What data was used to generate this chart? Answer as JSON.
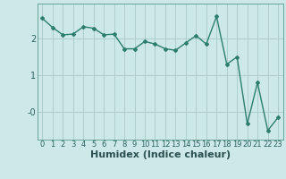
{
  "x": [
    0,
    1,
    2,
    3,
    4,
    5,
    6,
    7,
    8,
    9,
    10,
    11,
    12,
    13,
    14,
    15,
    16,
    17,
    18,
    19,
    20,
    21,
    22,
    23
  ],
  "y": [
    2.55,
    2.3,
    2.1,
    2.12,
    2.32,
    2.28,
    2.1,
    2.12,
    1.72,
    1.72,
    1.92,
    1.85,
    1.72,
    1.68,
    1.88,
    2.08,
    1.85,
    2.6,
    1.3,
    1.5,
    -0.32,
    0.8,
    -0.5,
    -0.15
  ],
  "line_color": "#2d7d6e",
  "bg_color": "#cce8e8",
  "grid_color": "#aecece",
  "xlabel": "Humidex (Indice chaleur)",
  "ytick_labels": [
    "-0",
    "1",
    "2"
  ],
  "ytick_vals": [
    0.0,
    1.0,
    2.0
  ],
  "ylim": [
    -0.75,
    2.95
  ],
  "xlim": [
    -0.5,
    23.5
  ],
  "marker": "D",
  "markersize": 2.0,
  "linewidth": 1.0,
  "xlabel_fontsize": 8,
  "ytick_fontsize": 7,
  "xtick_fontsize": 6
}
